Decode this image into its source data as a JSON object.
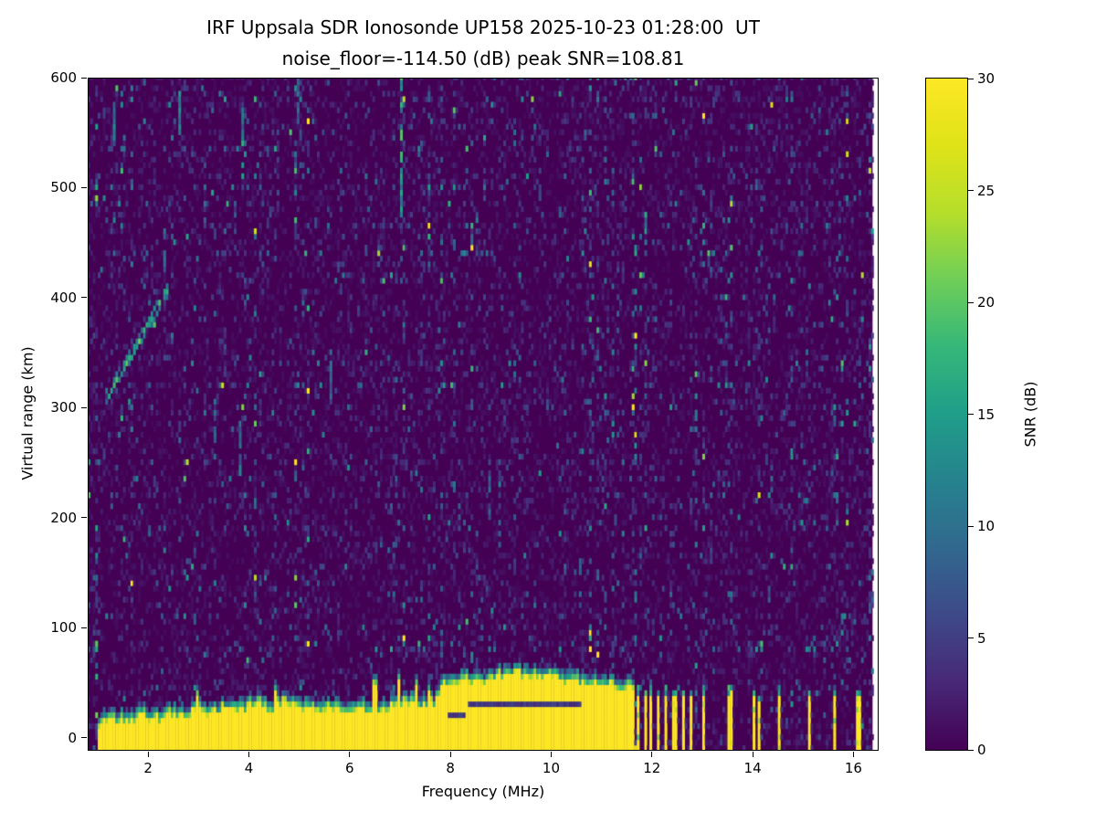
{
  "figure": {
    "title_line1": "IRF Uppsala SDR Ionosonde UP158 2025-10-23 01:28:00  UT",
    "title_line2": "noise_floor=-114.50 (dB) peak SNR=108.81",
    "xlabel": "Frequency (MHz)",
    "ylabel": "Virtual range (km)",
    "colorbar_label": "SNR (dB)"
  },
  "chart_data": {
    "type": "heatmap",
    "title": "IRF Uppsala SDR Ionosonde UP158 2025-10-23 01:28:00  UT / noise_floor=-114.50 (dB) peak SNR=108.81",
    "station": "IRF Uppsala SDR Ionosonde UP158",
    "timestamp_ut": "2025-10-23 01:28:00",
    "noise_floor_db": -114.5,
    "peak_snr_db": 108.81,
    "xlabel": "Frequency (MHz)",
    "ylabel": "Virtual range (km)",
    "xlim": [
      0.8,
      16.5
    ],
    "ylim": [
      -12,
      600
    ],
    "xticks": [
      2,
      4,
      6,
      8,
      10,
      12,
      14,
      16
    ],
    "yticks": [
      0,
      100,
      200,
      300,
      400,
      500,
      600
    ],
    "colorbar": {
      "label": "SNR (dB)",
      "ticks": [
        0,
        5,
        10,
        15,
        20,
        25,
        30
      ],
      "range": [
        0,
        30
      ],
      "colormap": "viridis"
    },
    "freq_range_mhz": [
      0.8,
      16.38
    ],
    "freq_step_mhz": 0.05,
    "range_step_km": 5,
    "ground_echo_top_km": [
      [
        1.0,
        10
      ],
      [
        1.3,
        14
      ],
      [
        1.6,
        12
      ],
      [
        1.9,
        18
      ],
      [
        2.1,
        14
      ],
      [
        2.4,
        20
      ],
      [
        2.7,
        16
      ],
      [
        3.0,
        24
      ],
      [
        3.2,
        18
      ],
      [
        3.5,
        26
      ],
      [
        3.8,
        22
      ],
      [
        4.1,
        28
      ],
      [
        4.4,
        24
      ],
      [
        4.7,
        30
      ],
      [
        5.0,
        26
      ],
      [
        5.3,
        22
      ],
      [
        5.6,
        27
      ],
      [
        5.9,
        20
      ],
      [
        6.2,
        24
      ],
      [
        6.5,
        18
      ],
      [
        6.8,
        26
      ],
      [
        7.1,
        30
      ],
      [
        7.4,
        26
      ],
      [
        7.65,
        28
      ],
      [
        7.78,
        44
      ],
      [
        8.0,
        46
      ],
      [
        8.3,
        50
      ],
      [
        8.6,
        48
      ],
      [
        9.0,
        54
      ],
      [
        9.4,
        56
      ],
      [
        9.8,
        52
      ],
      [
        10.2,
        50
      ],
      [
        10.6,
        48
      ],
      [
        11.0,
        46
      ],
      [
        11.3,
        44
      ],
      [
        11.63,
        42
      ]
    ],
    "ground_echo_freq_span_mhz": [
      1.0,
      11.63
    ],
    "echo_spikes": [
      {
        "f": 2.95,
        "w": 0.08,
        "top": 36
      },
      {
        "f": 4.5,
        "w": 0.08,
        "top": 40
      },
      {
        "f": 6.48,
        "w": 0.08,
        "top": 46
      },
      {
        "f": 6.95,
        "w": 0.09,
        "top": 50
      },
      {
        "f": 7.3,
        "w": 0.08,
        "top": 44
      },
      {
        "f": 7.55,
        "w": 0.07,
        "top": 40
      }
    ],
    "rf_stripes": [
      {
        "f": 11.72,
        "w": 0.06,
        "top": 38
      },
      {
        "f": 11.84,
        "w": 0.05,
        "top": 36
      },
      {
        "f": 11.97,
        "w": 0.06,
        "top": 38
      },
      {
        "f": 12.1,
        "w": 0.05,
        "top": 34
      },
      {
        "f": 12.24,
        "w": 0.06,
        "top": 38
      },
      {
        "f": 12.42,
        "w": 0.07,
        "top": 36
      },
      {
        "f": 12.58,
        "w": 0.05,
        "top": 34
      },
      {
        "f": 12.76,
        "w": 0.06,
        "top": 36
      },
      {
        "f": 12.99,
        "w": 0.06,
        "top": 38
      },
      {
        "f": 13.08,
        "w": 0.04,
        "top": 30
      },
      {
        "f": 13.52,
        "w": 0.07,
        "top": 38
      },
      {
        "f": 14.02,
        "w": 0.06,
        "top": 36
      },
      {
        "f": 14.12,
        "w": 0.04,
        "top": 30
      },
      {
        "f": 14.52,
        "w": 0.06,
        "top": 38
      },
      {
        "f": 14.63,
        "w": 0.04,
        "top": 32
      },
      {
        "f": 15.12,
        "w": 0.06,
        "top": 36
      },
      {
        "f": 15.62,
        "w": 0.05,
        "top": 34
      },
      {
        "f": 16.08,
        "w": 0.06,
        "top": 36
      }
    ],
    "ionospheric_trace": [
      [
        1.12,
        306
      ],
      [
        1.25,
        315
      ],
      [
        1.4,
        327
      ],
      [
        1.55,
        338
      ],
      [
        1.7,
        350
      ],
      [
        1.85,
        362
      ],
      [
        2.0,
        374
      ],
      [
        2.15,
        388
      ],
      [
        2.28,
        398
      ],
      [
        2.35,
        404
      ]
    ],
    "interference_streaks": [
      {
        "f": 6.98,
        "w": 0.06,
        "km0": 472,
        "km1": 600,
        "snr": 15
      },
      {
        "f": 3.86,
        "w": 0.06,
        "km0": 505,
        "km1": 568,
        "snr": 13
      },
      {
        "f": 2.58,
        "w": 0.05,
        "km0": 548,
        "km1": 586,
        "snr": 11
      },
      {
        "f": 3.78,
        "w": 0.05,
        "km0": 238,
        "km1": 285,
        "snr": 9
      },
      {
        "f": 1.32,
        "w": 0.05,
        "km0": 535,
        "km1": 575,
        "snr": 10
      },
      {
        "f": 4.95,
        "w": 0.05,
        "km0": 556,
        "km1": 600,
        "snr": 9
      },
      {
        "f": 2.3,
        "w": 0.05,
        "km0": 420,
        "km1": 458,
        "snr": 8
      },
      {
        "f": 5.62,
        "w": 0.05,
        "km0": 300,
        "km1": 348,
        "snr": 8
      },
      {
        "f": 3.3,
        "w": 0.05,
        "km0": 245,
        "km1": 305,
        "snr": 8
      },
      {
        "f": 8.73,
        "w": 0.05,
        "km0": 198,
        "km1": 242,
        "snr": 7
      },
      {
        "f": 10.55,
        "w": 0.05,
        "km0": 118,
        "km1": 162,
        "snr": 7
      }
    ],
    "band_lacunae": [
      {
        "f0": 8.3,
        "f1": 10.6,
        "km": 27
      },
      {
        "f0": 7.9,
        "f1": 8.25,
        "km": 20
      }
    ],
    "viridis_stops": [
      "#440154",
      "#482878",
      "#3e4989",
      "#31688e",
      "#26828e",
      "#1f9e89",
      "#35b779",
      "#6ece58",
      "#b5de2b",
      "#dfe318",
      "#fde725"
    ],
    "noise_seed": 20251023
  }
}
